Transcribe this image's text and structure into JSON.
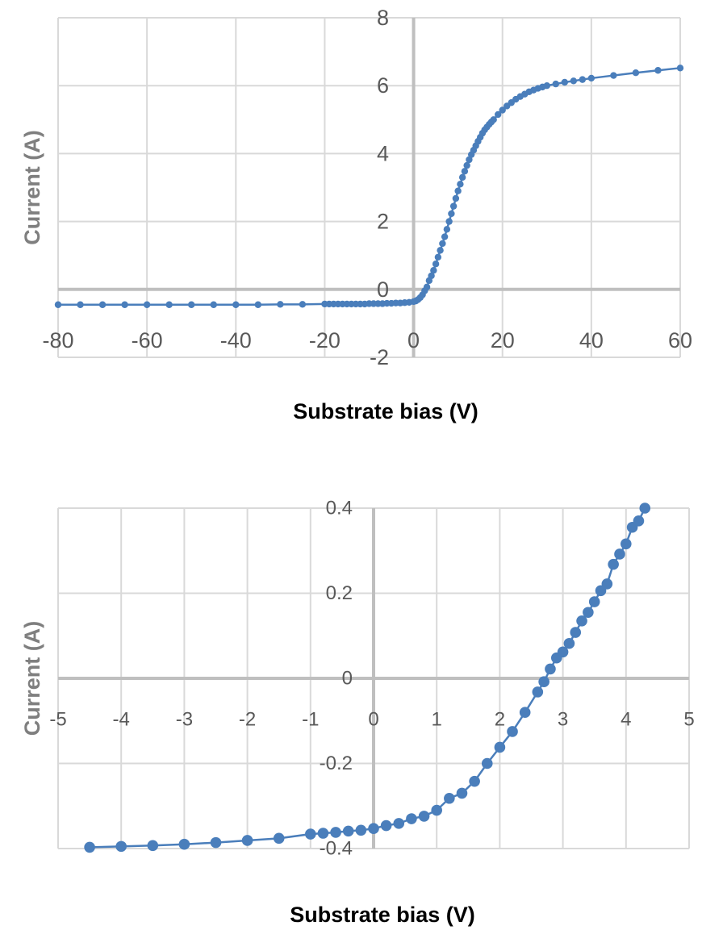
{
  "chart_data": [
    {
      "type": "line",
      "xlabel": "Substrate bias (V)",
      "ylabel": "Current (A)",
      "xlim": [
        -80,
        60
      ],
      "ylim": [
        -2,
        8
      ],
      "x_ticks": [
        "-80",
        "-60",
        "-40",
        "-20",
        "0",
        "20",
        "40",
        "60"
      ],
      "y_ticks": [
        "-2",
        "0",
        "2",
        "4",
        "6",
        "8"
      ],
      "grid": true,
      "legend": "none",
      "markers": true,
      "series_color": "#4a7ebb",
      "series": [
        {
          "x": [
            -80,
            -75,
            -70,
            -65,
            -60,
            -55,
            -50,
            -45,
            -40,
            -35,
            -30,
            -25,
            -20,
            -19,
            -18,
            -17,
            -16,
            -15,
            -14,
            -13,
            -12,
            -11,
            -10,
            -9,
            -8,
            -7,
            -6,
            -5,
            -4,
            -3,
            -2,
            -1,
            0,
            0.5,
            1,
            1.5,
            2,
            2.5,
            3,
            3.5,
            4,
            4.5,
            5,
            5.5,
            6,
            6.5,
            7,
            7.5,
            8,
            8.5,
            9,
            9.5,
            10,
            10.5,
            11,
            11.5,
            12,
            12.5,
            13,
            13.5,
            14,
            14.5,
            15,
            15.5,
            16,
            16.5,
            17,
            17.5,
            18,
            19,
            20,
            21,
            22,
            23,
            24,
            25,
            26,
            27,
            28,
            29,
            30,
            32,
            34,
            36,
            38,
            40,
            45,
            50,
            55,
            60
          ],
          "y": [
            -0.45,
            -0.45,
            -0.45,
            -0.45,
            -0.45,
            -0.45,
            -0.45,
            -0.45,
            -0.45,
            -0.45,
            -0.44,
            -0.44,
            -0.43,
            -0.43,
            -0.43,
            -0.43,
            -0.43,
            -0.43,
            -0.43,
            -0.43,
            -0.43,
            -0.43,
            -0.42,
            -0.42,
            -0.42,
            -0.42,
            -0.41,
            -0.41,
            -0.4,
            -0.4,
            -0.39,
            -0.38,
            -0.36,
            -0.34,
            -0.3,
            -0.24,
            -0.16,
            -0.04,
            0.07,
            0.26,
            0.4,
            0.56,
            0.75,
            0.95,
            1.15,
            1.35,
            1.55,
            1.77,
            2.0,
            2.23,
            2.45,
            2.68,
            2.9,
            3.1,
            3.3,
            3.48,
            3.65,
            3.82,
            3.97,
            4.1,
            4.23,
            4.36,
            4.48,
            4.6,
            4.7,
            4.78,
            4.86,
            4.93,
            5.0,
            5.15,
            5.28,
            5.4,
            5.5,
            5.6,
            5.68,
            5.75,
            5.82,
            5.87,
            5.92,
            5.96,
            6.0,
            6.05,
            6.1,
            6.14,
            6.18,
            6.22,
            6.3,
            6.38,
            6.45,
            6.52
          ]
        }
      ]
    },
    {
      "type": "line",
      "xlabel": "Substrate bias (V)",
      "ylabel": "Current (A)",
      "xlim": [
        -5,
        5
      ],
      "ylim": [
        -0.4,
        0.4
      ],
      "x_ticks": [
        "-5",
        "-4",
        "-3",
        "-2",
        "-1",
        "0",
        "1",
        "2",
        "3",
        "4",
        "5"
      ],
      "y_ticks": [
        "-0.4",
        "-0.2",
        "0",
        "0.2",
        "0.4"
      ],
      "grid": true,
      "legend": "none",
      "markers": true,
      "series_color": "#4a7ebb",
      "series": [
        {
          "x": [
            -4.5,
            -4,
            -3.5,
            -3,
            -2.5,
            -2,
            -1.5,
            -1,
            -0.8,
            -0.6,
            -0.4,
            -0.2,
            0,
            0.2,
            0.4,
            0.6,
            0.8,
            1,
            1.2,
            1.4,
            1.6,
            1.8,
            2,
            2.2,
            2.4,
            2.6,
            2.7,
            2.8,
            2.9,
            3,
            3.1,
            3.2,
            3.3,
            3.4,
            3.5,
            3.6,
            3.7,
            3.8,
            3.9,
            4,
            4.1,
            4.2,
            4.3
          ],
          "y": [
            -0.397,
            -0.395,
            -0.393,
            -0.39,
            -0.386,
            -0.381,
            -0.376,
            -0.366,
            -0.364,
            -0.362,
            -0.359,
            -0.357,
            -0.353,
            -0.346,
            -0.341,
            -0.33,
            -0.324,
            -0.31,
            -0.282,
            -0.27,
            -0.242,
            -0.2,
            -0.162,
            -0.125,
            -0.08,
            -0.032,
            -0.008,
            0.022,
            0.048,
            0.062,
            0.082,
            0.108,
            0.135,
            0.155,
            0.18,
            0.206,
            0.222,
            0.268,
            0.292,
            0.316,
            0.355,
            0.37,
            0.4
          ]
        }
      ]
    }
  ]
}
